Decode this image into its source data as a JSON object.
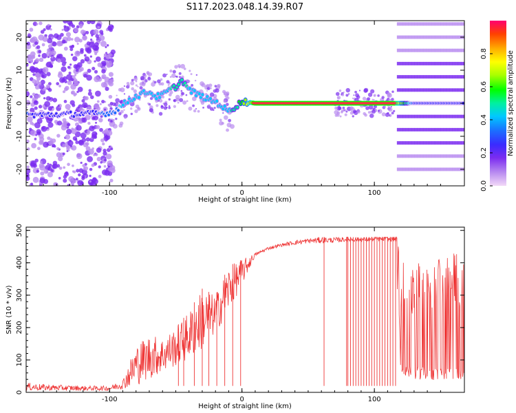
{
  "title": "S117.2023.048.14.39.R07",
  "colors": {
    "line": "#ee3333",
    "colormap": [
      "#f2d9f7",
      "#b98cf0",
      "#7b2cf0",
      "#3a2bff",
      "#1c6bff",
      "#00c8ff",
      "#00f0a0",
      "#00ff00",
      "#a8ff00",
      "#ffff00",
      "#ffae00",
      "#ff4000",
      "#ff0070"
    ]
  },
  "chart_data": [
    {
      "type": "heatmap",
      "name": "spectrogram",
      "xlabel": "Height of straight line (km)",
      "ylabel": "Frequency (Hz)",
      "xlim": [
        -163,
        168
      ],
      "ylim": [
        -25,
        25
      ],
      "xticks": [
        -100,
        0,
        100
      ],
      "yticks": [
        -20,
        -10,
        0,
        10,
        20
      ],
      "colorbar": {
        "label": "Normalized spectral amplitude",
        "range": [
          0,
          1
        ],
        "ticks": [
          "0.0",
          "0.2",
          "0.4",
          "0.6",
          "0.8"
        ]
      },
      "grid": false,
      "ridge": {
        "note_free": true,
        "x": [
          -163,
          -150,
          -100,
          -95,
          -90,
          -85,
          -80,
          -75,
          -70,
          -65,
          -60,
          -55,
          -50,
          -45,
          -40,
          -35,
          -30,
          -25,
          -20,
          -15,
          -10,
          -5,
          0,
          5,
          10,
          20,
          40,
          60,
          80,
          100,
          115,
          130,
          150,
          168
        ],
        "f": [
          -3.5,
          -3.5,
          -3,
          -2,
          -0.5,
          1,
          2,
          3,
          3.5,
          2,
          2.5,
          4,
          5,
          7,
          4,
          3,
          2,
          1,
          0.5,
          -1,
          -2.5,
          -1,
          0.5,
          0.3,
          0,
          0,
          0,
          0,
          0,
          0,
          0,
          0,
          0,
          0
        ],
        "amp": [
          0.3,
          0.25,
          0.3,
          0.35,
          0.4,
          0.4,
          0.45,
          0.45,
          0.45,
          0.4,
          0.4,
          0.45,
          0.5,
          0.5,
          0.45,
          0.45,
          0.45,
          0.4,
          0.4,
          0.4,
          0.45,
          0.5,
          0.6,
          0.75,
          0.95,
          0.95,
          0.95,
          0.95,
          0.95,
          0.95,
          0.95,
          0.25,
          0.25,
          0.25
        ]
      },
      "harmonic_bands_hz": [
        -20,
        -16,
        -12,
        -8,
        -4,
        0,
        4,
        8,
        12,
        16,
        20,
        24
      ],
      "harmonic_band_range_km": [
        117,
        168
      ]
    },
    {
      "type": "line",
      "name": "snr",
      "xlabel": "Height of straight line (km)",
      "ylabel": "SNR (10 * v/v)",
      "xlim": [
        -163,
        168
      ],
      "ylim": [
        0,
        510
      ],
      "xticks": [
        -100,
        0,
        100
      ],
      "yticks": [
        0,
        100,
        200,
        300,
        400,
        500
      ],
      "grid": false,
      "series": [
        {
          "x": [
            -163,
            -150,
            -120,
            -100,
            -90,
            -80,
            -70,
            -60,
            -50,
            -40,
            -30,
            -20,
            -10,
            0,
            10,
            20,
            30,
            40,
            50,
            60,
            70,
            80,
            90,
            100,
            110,
            117,
            120,
            125,
            130,
            140,
            150,
            160,
            168
          ],
          "top": [
            30,
            25,
            20,
            20,
            40,
            150,
            180,
            170,
            200,
            250,
            320,
            300,
            390,
            410,
            430,
            450,
            460,
            470,
            475,
            480,
            478,
            480,
            478,
            480,
            480,
            480,
            420,
            380,
            400,
            420,
            410,
            430,
            420
          ],
          "bottom": [
            5,
            5,
            5,
            5,
            10,
            20,
            40,
            60,
            80,
            100,
            130,
            180,
            250,
            330,
            420,
            440,
            450,
            455,
            460,
            460,
            462,
            465,
            465,
            466,
            466,
            466,
            40,
            40,
            40,
            40,
            35,
            35,
            35
          ]
        }
      ],
      "dropouts_km": [
        -48,
        -44,
        -36,
        -30,
        -25,
        -19,
        -13,
        -7,
        -1,
        62,
        79,
        80,
        82,
        84,
        86,
        88,
        90,
        92,
        94,
        96,
        98,
        100,
        102,
        104,
        106,
        108,
        110,
        112,
        114,
        116
      ]
    }
  ]
}
